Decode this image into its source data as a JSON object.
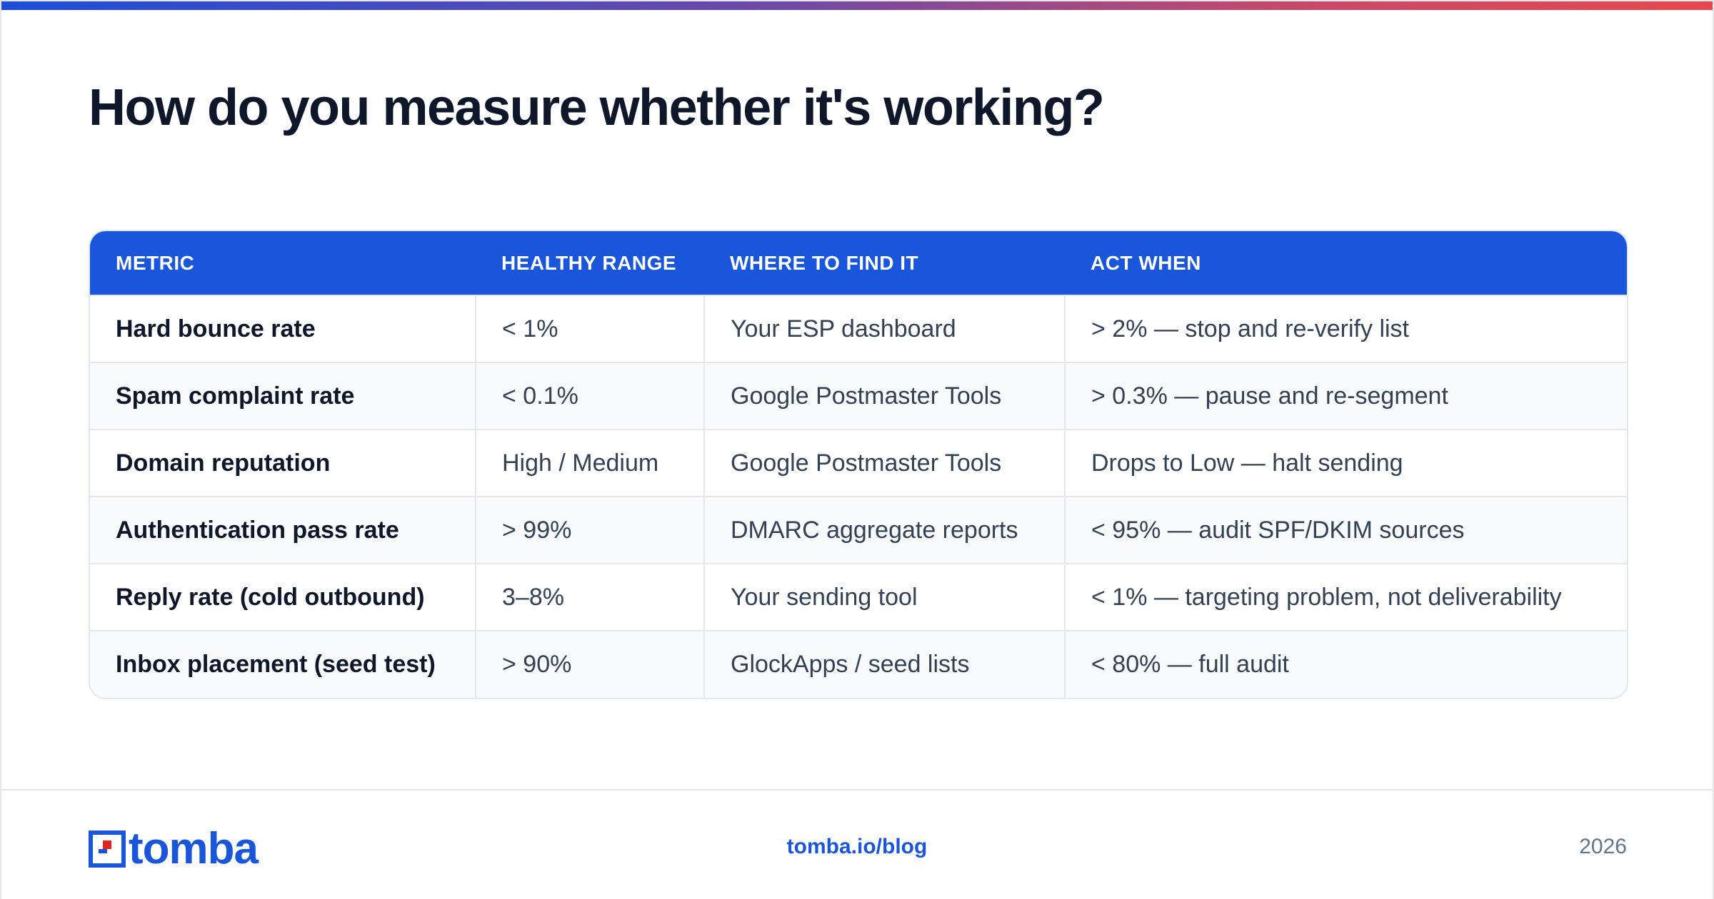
{
  "title": "How do you measure whether it's working?",
  "colors": {
    "accent": "#1a56db",
    "gradient_start": "#1d4ed8",
    "gradient_end": "#e5484d",
    "logo_red": "#e02424"
  },
  "table": {
    "headers": [
      "METRIC",
      "HEALTHY RANGE",
      "WHERE TO FIND IT",
      "ACT WHEN"
    ],
    "rows": [
      [
        "Hard bounce rate",
        "< 1%",
        "Your ESP dashboard",
        "> 2% — stop and re-verify list"
      ],
      [
        "Spam complaint rate",
        "< 0.1%",
        "Google Postmaster Tools",
        "> 0.3% — pause and re-segment"
      ],
      [
        "Domain reputation",
        "High / Medium",
        "Google Postmaster Tools",
        "Drops to Low — halt sending"
      ],
      [
        "Authentication pass rate",
        "> 99%",
        "DMARC aggregate reports",
        "< 95% — audit SPF/DKIM sources"
      ],
      [
        "Reply rate (cold outbound)",
        "3–8%",
        "Your sending tool",
        "< 1% — targeting problem, not deliverability"
      ],
      [
        "Inbox placement (seed test)",
        "> 90%",
        "GlockApps / seed lists",
        "< 80% — full audit"
      ]
    ]
  },
  "footer": {
    "logo_text": "tomba",
    "link": "tomba.io/blog",
    "year": "2026"
  },
  "icons": {
    "logo": "tomba-logo-icon"
  }
}
